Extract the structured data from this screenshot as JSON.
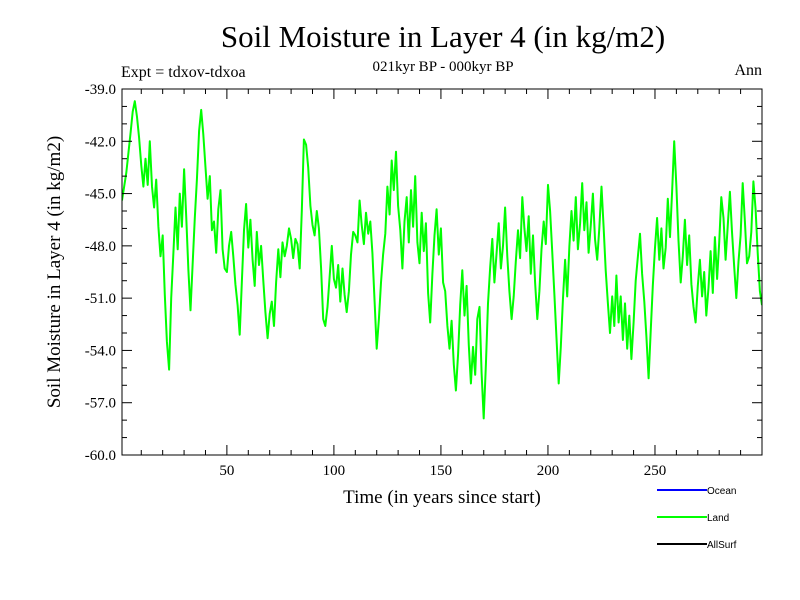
{
  "chart_data": {
    "type": "line",
    "title": "Soil Moisture in Layer 4 (in kg/m2)",
    "subtitle": "021kyr BP - 000kyr BP",
    "left_note": "Expt = tdxov-tdxoa",
    "right_note": "Ann",
    "xlabel": "Time (in years since start)",
    "ylabel": "Soil Moisture in Layer 4 (in kg/m2)",
    "xlim": [
      1,
      300
    ],
    "ylim": [
      -60,
      -39
    ],
    "x_ticks": [
      50,
      100,
      150,
      200,
      250
    ],
    "x_tick_labels": [
      "50",
      "100",
      "150",
      "200",
      "250"
    ],
    "y_ticks": [
      -60,
      -57,
      -54,
      -51,
      -48,
      -45,
      -42,
      -39
    ],
    "y_tick_labels": [
      "-60.0",
      "-57.0",
      "-54.0",
      "-51.0",
      "-48.0",
      "-45.0",
      "-42.0",
      "-39.0"
    ],
    "grid": false,
    "legend_position": "bottom-right",
    "legend": [
      {
        "name": "Ocean",
        "color": "#0000ff"
      },
      {
        "name": "Land",
        "color": "#00ff00"
      },
      {
        "name": "AllSurf",
        "color": "#000000"
      }
    ],
    "series": [
      {
        "name": "Land",
        "color": "#00ff00",
        "points": [
          [
            1,
            -45.4
          ],
          [
            3,
            -43.8
          ],
          [
            5,
            -41.5
          ],
          [
            6,
            -40.3
          ],
          [
            7,
            -39.7
          ],
          [
            8,
            -40.6
          ],
          [
            9,
            -41.8
          ],
          [
            10,
            -43.4
          ],
          [
            11,
            -44.6
          ],
          [
            12,
            -43.0
          ],
          [
            13,
            -44.5
          ],
          [
            14,
            -42.0
          ],
          [
            15,
            -44.6
          ],
          [
            16,
            -45.8
          ],
          [
            17,
            -44.2
          ],
          [
            18,
            -46.9
          ],
          [
            19,
            -48.6
          ],
          [
            20,
            -47.4
          ],
          [
            21,
            -50.8
          ],
          [
            22,
            -53.5
          ],
          [
            23,
            -55.1
          ],
          [
            24,
            -51.0
          ],
          [
            25,
            -48.4
          ],
          [
            26,
            -45.8
          ],
          [
            27,
            -48.2
          ],
          [
            28,
            -45.0
          ],
          [
            29,
            -46.9
          ],
          [
            30,
            -43.6
          ],
          [
            31,
            -46.3
          ],
          [
            32,
            -49.4
          ],
          [
            33,
            -51.7
          ],
          [
            34,
            -49.1
          ],
          [
            35,
            -46.4
          ],
          [
            36,
            -44.2
          ],
          [
            37,
            -41.4
          ],
          [
            38,
            -40.2
          ],
          [
            39,
            -41.6
          ],
          [
            40,
            -43.5
          ],
          [
            41,
            -45.3
          ],
          [
            42,
            -44.0
          ],
          [
            43,
            -47.1
          ],
          [
            44,
            -46.6
          ],
          [
            45,
            -48.4
          ],
          [
            46,
            -45.9
          ],
          [
            47,
            -44.8
          ],
          [
            48,
            -48.2
          ],
          [
            49,
            -49.3
          ],
          [
            50,
            -49.5
          ],
          [
            51,
            -48.0
          ],
          [
            52,
            -47.2
          ],
          [
            53,
            -48.6
          ],
          [
            54,
            -50.2
          ],
          [
            55,
            -51.4
          ],
          [
            56,
            -53.1
          ],
          [
            57,
            -50.0
          ],
          [
            58,
            -47.1
          ],
          [
            59,
            -45.6
          ],
          [
            60,
            -48.1
          ],
          [
            61,
            -46.5
          ],
          [
            62,
            -48.8
          ],
          [
            63,
            -50.3
          ],
          [
            64,
            -47.2
          ],
          [
            65,
            -49.1
          ],
          [
            66,
            -48.0
          ],
          [
            67,
            -50.0
          ],
          [
            68,
            -51.8
          ],
          [
            69,
            -53.3
          ],
          [
            70,
            -51.9
          ],
          [
            71,
            -51.2
          ],
          [
            72,
            -52.6
          ],
          [
            73,
            -50.1
          ],
          [
            74,
            -48.2
          ],
          [
            75,
            -49.8
          ],
          [
            76,
            -47.8
          ],
          [
            77,
            -48.6
          ],
          [
            78,
            -48.0
          ],
          [
            79,
            -47.0
          ],
          [
            80,
            -47.6
          ],
          [
            81,
            -48.7
          ],
          [
            82,
            -47.6
          ],
          [
            83,
            -47.9
          ],
          [
            84,
            -49.3
          ],
          [
            85,
            -46.0
          ],
          [
            86,
            -41.9
          ],
          [
            87,
            -42.2
          ],
          [
            88,
            -43.5
          ],
          [
            89,
            -45.7
          ],
          [
            90,
            -46.8
          ],
          [
            91,
            -47.4
          ],
          [
            92,
            -46.0
          ],
          [
            93,
            -47.0
          ],
          [
            94,
            -49.3
          ],
          [
            95,
            -52.2
          ],
          [
            96,
            -52.6
          ],
          [
            97,
            -51.5
          ],
          [
            98,
            -49.8
          ],
          [
            99,
            -48.0
          ],
          [
            100,
            -49.9
          ],
          [
            101,
            -50.4
          ],
          [
            102,
            -49.1
          ],
          [
            103,
            -51.2
          ],
          [
            104,
            -49.3
          ],
          [
            105,
            -50.8
          ],
          [
            106,
            -51.8
          ],
          [
            107,
            -50.6
          ],
          [
            108,
            -48.5
          ],
          [
            109,
            -47.2
          ],
          [
            110,
            -47.4
          ],
          [
            111,
            -47.8
          ],
          [
            112,
            -45.4
          ],
          [
            113,
            -46.8
          ],
          [
            114,
            -47.9
          ],
          [
            115,
            -46.1
          ],
          [
            116,
            -47.3
          ],
          [
            117,
            -46.6
          ],
          [
            118,
            -48.4
          ],
          [
            119,
            -51.2
          ],
          [
            120,
            -53.9
          ],
          [
            121,
            -52.2
          ],
          [
            122,
            -50.1
          ],
          [
            123,
            -48.5
          ],
          [
            124,
            -47.3
          ],
          [
            125,
            -44.6
          ],
          [
            126,
            -46.2
          ],
          [
            127,
            -43.1
          ],
          [
            128,
            -44.8
          ],
          [
            129,
            -42.6
          ],
          [
            130,
            -45.7
          ],
          [
            131,
            -47.1
          ],
          [
            132,
            -49.3
          ],
          [
            133,
            -46.6
          ],
          [
            134,
            -45.2
          ],
          [
            135,
            -47.8
          ],
          [
            136,
            -44.8
          ],
          [
            137,
            -46.9
          ],
          [
            138,
            -44.0
          ],
          [
            139,
            -47.8
          ],
          [
            140,
            -49.0
          ],
          [
            141,
            -46.1
          ],
          [
            142,
            -48.3
          ],
          [
            143,
            -46.7
          ],
          [
            144,
            -50.7
          ],
          [
            145,
            -52.4
          ],
          [
            146,
            -49.6
          ],
          [
            147,
            -47.4
          ],
          [
            148,
            -45.9
          ],
          [
            149,
            -48.5
          ],
          [
            150,
            -47.0
          ],
          [
            151,
            -50.1
          ],
          [
            152,
            -50.6
          ],
          [
            153,
            -52.6
          ],
          [
            154,
            -53.9
          ],
          [
            155,
            -52.3
          ],
          [
            156,
            -54.8
          ],
          [
            157,
            -56.3
          ],
          [
            158,
            -54.2
          ],
          [
            159,
            -51.4
          ],
          [
            160,
            -49.4
          ],
          [
            161,
            -52.0
          ],
          [
            162,
            -50.3
          ],
          [
            163,
            -53.7
          ],
          [
            164,
            -55.9
          ],
          [
            165,
            -53.8
          ],
          [
            166,
            -55.4
          ],
          [
            167,
            -52.2
          ],
          [
            168,
            -51.5
          ],
          [
            169,
            -55.3
          ],
          [
            170,
            -57.9
          ],
          [
            171,
            -54.8
          ],
          [
            172,
            -51.3
          ],
          [
            173,
            -49.2
          ],
          [
            174,
            -47.6
          ],
          [
            175,
            -50.1
          ],
          [
            176,
            -48.4
          ],
          [
            177,
            -46.7
          ],
          [
            178,
            -49.3
          ],
          [
            179,
            -48.0
          ],
          [
            180,
            -45.8
          ],
          [
            181,
            -48.6
          ],
          [
            182,
            -50.6
          ],
          [
            183,
            -52.2
          ],
          [
            184,
            -50.9
          ],
          [
            185,
            -48.9
          ],
          [
            186,
            -47.1
          ],
          [
            187,
            -48.7
          ],
          [
            188,
            -45.2
          ],
          [
            189,
            -47.0
          ],
          [
            190,
            -48.3
          ],
          [
            191,
            -46.3
          ],
          [
            192,
            -49.6
          ],
          [
            193,
            -47.4
          ],
          [
            194,
            -50.1
          ],
          [
            195,
            -52.2
          ],
          [
            196,
            -50.6
          ],
          [
            197,
            -48.2
          ],
          [
            198,
            -46.6
          ],
          [
            199,
            -47.9
          ],
          [
            200,
            -44.5
          ],
          [
            201,
            -46.0
          ],
          [
            202,
            -48.3
          ],
          [
            203,
            -50.8
          ],
          [
            204,
            -53.3
          ],
          [
            205,
            -55.9
          ],
          [
            206,
            -53.8
          ],
          [
            207,
            -51.1
          ],
          [
            208,
            -48.8
          ],
          [
            209,
            -50.9
          ],
          [
            210,
            -48.0
          ],
          [
            211,
            -46.0
          ],
          [
            212,
            -47.7
          ],
          [
            213,
            -45.2
          ],
          [
            214,
            -48.2
          ],
          [
            215,
            -46.7
          ],
          [
            216,
            -44.4
          ],
          [
            217,
            -47.1
          ],
          [
            218,
            -45.5
          ],
          [
            219,
            -48.4
          ],
          [
            220,
            -46.8
          ],
          [
            221,
            -45.0
          ],
          [
            222,
            -47.6
          ],
          [
            223,
            -48.8
          ],
          [
            224,
            -47.0
          ],
          [
            225,
            -44.6
          ],
          [
            226,
            -46.9
          ],
          [
            227,
            -49.4
          ],
          [
            228,
            -51.3
          ],
          [
            229,
            -53.0
          ],
          [
            230,
            -50.9
          ],
          [
            231,
            -52.6
          ],
          [
            232,
            -49.7
          ],
          [
            233,
            -52.4
          ],
          [
            234,
            -50.9
          ],
          [
            235,
            -53.4
          ],
          [
            236,
            -51.3
          ],
          [
            237,
            -53.9
          ],
          [
            238,
            -52.0
          ],
          [
            239,
            -54.5
          ],
          [
            240,
            -52.4
          ],
          [
            241,
            -50.0
          ],
          [
            242,
            -48.6
          ],
          [
            243,
            -47.3
          ],
          [
            244,
            -49.6
          ],
          [
            245,
            -51.2
          ],
          [
            246,
            -53.2
          ],
          [
            247,
            -55.6
          ],
          [
            248,
            -52.9
          ],
          [
            249,
            -50.3
          ],
          [
            250,
            -48.1
          ],
          [
            251,
            -46.4
          ],
          [
            252,
            -48.8
          ],
          [
            253,
            -47.0
          ],
          [
            254,
            -49.3
          ],
          [
            255,
            -48.1
          ],
          [
            256,
            -45.3
          ],
          [
            257,
            -47.5
          ],
          [
            258,
            -44.9
          ],
          [
            259,
            -42.0
          ],
          [
            260,
            -44.6
          ],
          [
            261,
            -47.7
          ],
          [
            262,
            -50.1
          ],
          [
            263,
            -48.6
          ],
          [
            264,
            -46.5
          ],
          [
            265,
            -49.1
          ],
          [
            266,
            -47.4
          ],
          [
            267,
            -50.2
          ],
          [
            268,
            -51.5
          ],
          [
            269,
            -52.4
          ],
          [
            270,
            -50.3
          ],
          [
            271,
            -48.8
          ],
          [
            272,
            -50.9
          ],
          [
            273,
            -49.5
          ],
          [
            274,
            -52.0
          ],
          [
            275,
            -50.4
          ],
          [
            276,
            -48.3
          ],
          [
            277,
            -50.7
          ],
          [
            278,
            -47.5
          ],
          [
            279,
            -49.9
          ],
          [
            280,
            -47.8
          ],
          [
            281,
            -45.2
          ],
          [
            282,
            -46.4
          ],
          [
            283,
            -48.8
          ],
          [
            284,
            -46.8
          ],
          [
            285,
            -44.9
          ],
          [
            286,
            -47.2
          ],
          [
            287,
            -49.2
          ],
          [
            288,
            -51.0
          ],
          [
            289,
            -48.9
          ],
          [
            290,
            -47.4
          ],
          [
            291,
            -44.4
          ],
          [
            292,
            -46.6
          ],
          [
            293,
            -49.0
          ],
          [
            294,
            -48.6
          ],
          [
            295,
            -47.2
          ],
          [
            296,
            -44.3
          ],
          [
            297,
            -45.9
          ],
          [
            298,
            -48.4
          ],
          [
            299,
            -50.6
          ],
          [
            300,
            -51.4
          ]
        ]
      }
    ]
  }
}
